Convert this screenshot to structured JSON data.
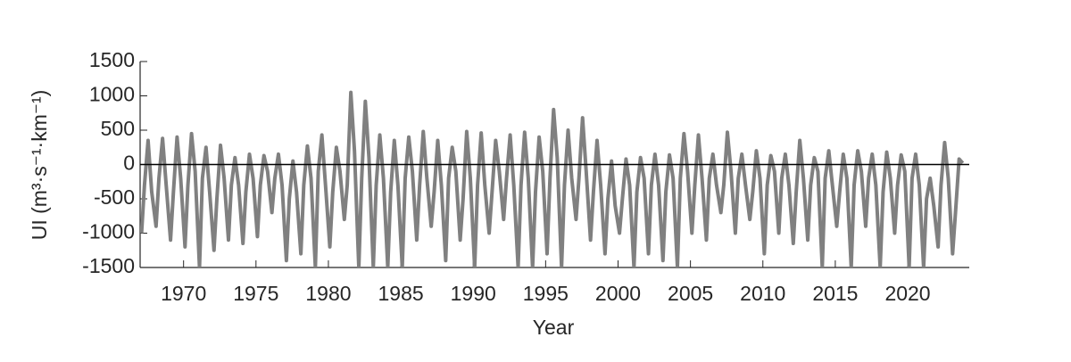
{
  "chart_data": {
    "type": "line",
    "xlabel": "Year",
    "ylabel": "UI (m³·s⁻¹·km⁻¹)",
    "xlim": [
      1967,
      2024.25
    ],
    "xticks": [
      1970,
      1975,
      1980,
      1985,
      1990,
      1995,
      2000,
      2005,
      2010,
      2015,
      2020
    ],
    "ylim": [
      -1500,
      1500
    ],
    "yticks": [
      -1500,
      -1000,
      -500,
      0,
      500,
      1000,
      1500
    ],
    "zero_line": true,
    "x": [
      1967.1,
      1967.3,
      1967.55,
      1967.8,
      1968.1,
      1968.3,
      1968.55,
      1968.8,
      1969.1,
      1969.3,
      1969.55,
      1969.8,
      1970.1,
      1970.3,
      1970.55,
      1970.8,
      1971.1,
      1971.3,
      1971.55,
      1971.8,
      1972.1,
      1972.3,
      1972.55,
      1972.8,
      1973.1,
      1973.3,
      1973.55,
      1973.8,
      1974.1,
      1974.3,
      1974.55,
      1974.8,
      1975.1,
      1975.3,
      1975.55,
      1975.8,
      1976.1,
      1976.3,
      1976.55,
      1976.8,
      1977.1,
      1977.3,
      1977.55,
      1977.8,
      1978.1,
      1978.3,
      1978.55,
      1978.8,
      1979.1,
      1979.3,
      1979.55,
      1979.8,
      1980.1,
      1980.3,
      1980.55,
      1980.8,
      1981.1,
      1981.3,
      1981.55,
      1981.8,
      1982.1,
      1982.3,
      1982.55,
      1982.8,
      1983.1,
      1983.3,
      1983.55,
      1983.8,
      1984.1,
      1984.3,
      1984.55,
      1984.8,
      1985.1,
      1985.3,
      1985.55,
      1985.8,
      1986.1,
      1986.3,
      1986.55,
      1986.8,
      1987.1,
      1987.3,
      1987.55,
      1987.8,
      1988.1,
      1988.3,
      1988.55,
      1988.8,
      1989.1,
      1989.3,
      1989.55,
      1989.8,
      1990.1,
      1990.3,
      1990.55,
      1990.8,
      1991.1,
      1991.3,
      1991.55,
      1991.8,
      1992.1,
      1992.3,
      1992.55,
      1992.8,
      1993.1,
      1993.3,
      1993.55,
      1993.8,
      1994.1,
      1994.3,
      1994.55,
      1994.8,
      1995.1,
      1995.3,
      1995.55,
      1995.8,
      1996.1,
      1996.3,
      1996.55,
      1996.8,
      1997.1,
      1997.3,
      1997.55,
      1997.8,
      1998.1,
      1998.3,
      1998.55,
      1998.8,
      1999.1,
      1999.3,
      1999.55,
      1999.8,
      2000.1,
      2000.3,
      2000.55,
      2000.8,
      2001.1,
      2001.3,
      2001.55,
      2001.8,
      2002.1,
      2002.3,
      2002.55,
      2002.8,
      2003.1,
      2003.3,
      2003.55,
      2003.8,
      2004.1,
      2004.3,
      2004.55,
      2004.8,
      2005.1,
      2005.3,
      2005.55,
      2005.8,
      2006.1,
      2006.3,
      2006.55,
      2006.8,
      2007.1,
      2007.3,
      2007.55,
      2007.8,
      2008.1,
      2008.3,
      2008.55,
      2008.8,
      2009.1,
      2009.3,
      2009.55,
      2009.8,
      2010.1,
      2010.3,
      2010.55,
      2010.8,
      2011.1,
      2011.3,
      2011.55,
      2011.8,
      2012.1,
      2012.3,
      2012.55,
      2012.8,
      2013.1,
      2013.3,
      2013.55,
      2013.8,
      2014.1,
      2014.3,
      2014.55,
      2014.8,
      2015.1,
      2015.3,
      2015.55,
      2015.8,
      2016.1,
      2016.3,
      2016.55,
      2016.8,
      2017.1,
      2017.3,
      2017.55,
      2017.8,
      2018.1,
      2018.3,
      2018.55,
      2018.8,
      2019.1,
      2019.3,
      2019.55,
      2019.8,
      2020.1,
      2020.3,
      2020.55,
      2020.8,
      2021.1,
      2021.3,
      2021.55,
      2021.8,
      2022.1,
      2022.3,
      2022.55,
      2022.8,
      2023.1,
      2023.3,
      2023.55,
      2023.8
    ],
    "series": [
      {
        "color": "#808080",
        "values": [
          -1000,
          -300,
          350,
          -400,
          -900,
          -200,
          380,
          -300,
          -1100,
          -400,
          400,
          -200,
          -1200,
          -300,
          450,
          -100,
          -1500,
          -200,
          250,
          -400,
          -1250,
          -500,
          280,
          -200,
          -1100,
          -300,
          100,
          -300,
          -1150,
          -400,
          150,
          -200,
          -1050,
          -300,
          130,
          -100,
          -700,
          -200,
          150,
          -300,
          -1400,
          -500,
          50,
          -400,
          -1300,
          -300,
          270,
          -200,
          -1500,
          -100,
          430,
          -300,
          -1200,
          -400,
          250,
          -100,
          -800,
          -300,
          1050,
          200,
          -1500,
          -200,
          920,
          100,
          -1500,
          -300,
          430,
          -200,
          -1500,
          -400,
          350,
          -300,
          -1500,
          -200,
          400,
          -100,
          -1100,
          -300,
          480,
          -200,
          -900,
          -400,
          350,
          -300,
          -1400,
          -200,
          250,
          -100,
          -1100,
          -500,
          480,
          -200,
          -1500,
          -300,
          460,
          -300,
          -1000,
          -400,
          350,
          -100,
          -800,
          -200,
          430,
          -300,
          -1500,
          -300,
          470,
          -200,
          -1500,
          -400,
          400,
          -100,
          -1300,
          -200,
          800,
          100,
          -1500,
          -300,
          500,
          -200,
          -800,
          -200,
          680,
          -100,
          -1100,
          -400,
          350,
          -300,
          -1300,
          -500,
          50,
          -600,
          -1000,
          -500,
          80,
          -300,
          -1500,
          -400,
          100,
          -200,
          -1300,
          -300,
          150,
          -300,
          -1400,
          -400,
          140,
          -200,
          -1500,
          -200,
          450,
          -100,
          -1000,
          -300,
          430,
          -200,
          -1100,
          -200,
          150,
          -300,
          -700,
          -300,
          470,
          -100,
          -1000,
          -200,
          150,
          -300,
          -800,
          -400,
          200,
          -200,
          -1300,
          -300,
          130,
          -100,
          -1000,
          -200,
          150,
          -300,
          -1150,
          -400,
          350,
          -200,
          -1100,
          -300,
          100,
          -100,
          -1500,
          -200,
          200,
          -300,
          -900,
          -400,
          150,
          -200,
          -1500,
          -300,
          200,
          -100,
          -900,
          -200,
          150,
          -300,
          -1500,
          -400,
          180,
          -200,
          -1000,
          -300,
          140,
          -100,
          -1500,
          -200,
          150,
          -300,
          -1500,
          -500,
          -200,
          -600,
          -1200,
          -300,
          320,
          -200,
          -1300,
          -700,
          80,
          20
        ]
      }
    ]
  }
}
